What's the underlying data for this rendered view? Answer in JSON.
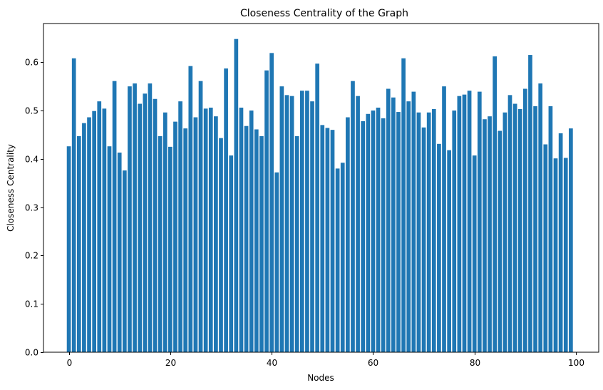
{
  "chart_data": {
    "type": "bar",
    "title": "Closeness Centrality of the Graph",
    "xlabel": "Nodes",
    "ylabel": "Closeness Centrality",
    "xlim": [
      -5,
      104.5
    ],
    "ylim": [
      0,
      0.68
    ],
    "xticks": [
      0,
      20,
      40,
      60,
      80,
      100
    ],
    "yticks": [
      0.0,
      0.1,
      0.2,
      0.3,
      0.4,
      0.5,
      0.6
    ],
    "ytick_labels": [
      "0.0",
      "0.1",
      "0.2",
      "0.3",
      "0.4",
      "0.5",
      "0.6"
    ],
    "bar_color": "#1f77b4",
    "bar_width": 0.8,
    "grid": false,
    "legend": null,
    "x": [
      0,
      1,
      2,
      3,
      4,
      5,
      6,
      7,
      8,
      9,
      10,
      11,
      12,
      13,
      14,
      15,
      16,
      17,
      18,
      19,
      20,
      21,
      22,
      23,
      24,
      25,
      26,
      27,
      28,
      29,
      30,
      31,
      32,
      33,
      34,
      35,
      36,
      37,
      38,
      39,
      40,
      41,
      42,
      43,
      44,
      45,
      46,
      47,
      48,
      49,
      50,
      51,
      52,
      53,
      54,
      55,
      56,
      57,
      58,
      59,
      60,
      61,
      62,
      63,
      64,
      65,
      66,
      67,
      68,
      69,
      70,
      71,
      72,
      73,
      74,
      75,
      76,
      77,
      78,
      79,
      80,
      81,
      82,
      83,
      84,
      85,
      86,
      87,
      88,
      89,
      90,
      91,
      92,
      93,
      94,
      95,
      96,
      97,
      98,
      99
    ],
    "values": [
      0.426,
      0.608,
      0.447,
      0.474,
      0.486,
      0.499,
      0.519,
      0.504,
      0.426,
      0.561,
      0.413,
      0.376,
      0.55,
      0.556,
      0.514,
      0.535,
      0.556,
      0.524,
      0.447,
      0.496,
      0.425,
      0.477,
      0.519,
      0.463,
      0.592,
      0.486,
      0.561,
      0.504,
      0.506,
      0.488,
      0.443,
      0.587,
      0.407,
      0.648,
      0.506,
      0.468,
      0.5,
      0.461,
      0.447,
      0.583,
      0.619,
      0.372,
      0.55,
      0.532,
      0.53,
      0.447,
      0.541,
      0.541,
      0.519,
      0.597,
      0.47,
      0.464,
      0.46,
      0.38,
      0.392,
      0.486,
      0.561,
      0.53,
      0.478,
      0.493,
      0.5,
      0.506,
      0.484,
      0.545,
      0.527,
      0.497,
      0.608,
      0.519,
      0.539,
      0.496,
      0.465,
      0.496,
      0.503,
      0.431,
      0.55,
      0.418,
      0.5,
      0.53,
      0.533,
      0.541,
      0.407,
      0.539,
      0.482,
      0.488,
      0.612,
      0.458,
      0.496,
      0.532,
      0.514,
      0.503,
      0.545,
      0.615,
      0.509,
      0.556,
      0.43,
      0.509,
      0.401,
      0.453,
      0.402,
      0.463
    ]
  }
}
